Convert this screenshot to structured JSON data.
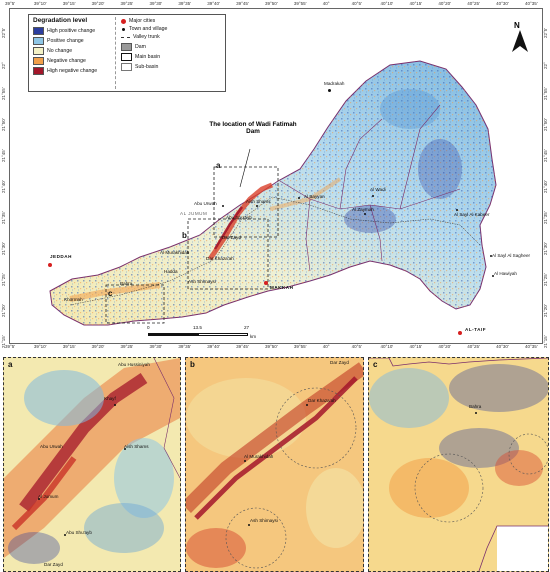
{
  "legend": {
    "title": "Degradation level",
    "items": [
      {
        "label": "High positive change",
        "color": "#2b3d9e"
      },
      {
        "label": "Positive change",
        "color": "#8ec6e6"
      },
      {
        "label": "No change",
        "color": "#f4f2c6"
      },
      {
        "label": "Negative change",
        "color": "#f2a04a"
      },
      {
        "label": "High negative change",
        "color": "#a3162a"
      }
    ],
    "symbols": [
      {
        "label": "Major cities"
      },
      {
        "label": "Town and village"
      },
      {
        "label": "Valley trunk"
      },
      {
        "label": "Dam"
      },
      {
        "label": "Main basin"
      },
      {
        "label": "Sub-basin"
      }
    ]
  },
  "north": "N",
  "scale": {
    "t0": "0",
    "t1": "13.5",
    "t2": "27",
    "unit": "km"
  },
  "top_x_ticks": [
    "39°5'",
    "39°10'",
    "39°15'",
    "39°20'",
    "39°25'",
    "39°30'",
    "39°35'",
    "39°40'",
    "39°45'",
    "39°50'",
    "39°55'",
    "40°",
    "40°5'",
    "40°10'",
    "40°15'",
    "40°20'",
    "40°25'",
    "40°30'",
    "40°35'"
  ],
  "bottom_x_ticks": [
    "39°5'",
    "39°10'",
    "39°15'",
    "39°20'",
    "39°25'",
    "39°30'",
    "39°35'",
    "39°40'",
    "39°45'",
    "39°50'",
    "39°55'",
    "40°",
    "40°5'",
    "40°10'",
    "40°15'",
    "40°20'",
    "40°25'",
    "40°30'",
    "40°35'"
  ],
  "y_ticks": [
    "22°5'",
    "22°",
    "21°55'",
    "21°50'",
    "21°45'",
    "21°40'",
    "21°35'",
    "21°30'",
    "21°25'",
    "21°20'",
    "21°15'"
  ],
  "annotation": "The location of Wadi Fatimah Dam",
  "main_labels": {
    "madrakah": "Madrakah",
    "jeddah": "JEDDAH",
    "makkah": "MAKKAH",
    "altaif": "AL-TAIF",
    "aljumum": "AL JUMUM",
    "abu_urwah": "Abu Urwah",
    "aish_shams": "Aish Shams",
    "abu_shuayb": "Abu Shu'ayb",
    "dar_zayd": "Dar Zayd",
    "al_murakhidah": "Al Murakhidah",
    "dar_khazaah": "Dar Khaza'ah",
    "al_bayyan": "Al Bayyan",
    "al_zaynah": "Al Zaymah",
    "al_sayl_kabeer": "Al Sayl Al Kabeer",
    "al_sayl_sagheer": "Al Sayl Al Sagheer",
    "al_huwiyah": "Al Hawiyah",
    "hadda": "Hadda",
    "bahra": "Bahra",
    "kharma": "Khormah",
    "ash_shimayshi": "Ash Shimaysi",
    "al_wadi": "Al Wadi"
  },
  "frames": {
    "a": "a",
    "b": "b",
    "c": "c"
  },
  "inset_a": {
    "abu_hussiniyah": "Abu Hussiniyah",
    "khayf": "Khayf",
    "abu_urwah": "Abu Urwah",
    "aish_shams": "Aish Shams",
    "al_jumum": "Al Jumum",
    "abu_shuayb": "Abu Shu'ayb",
    "dar_zayd": "Dar Zayd"
  },
  "inset_b": {
    "dar_zayd": "Dar Zayd",
    "dar_khazaah": "Dar Khaza'ah",
    "al_murakhidah": "Al Murakhidah",
    "ash_shimaysi": "Ash Shimaysi"
  },
  "inset_c": {
    "bahra": "Bahra"
  }
}
